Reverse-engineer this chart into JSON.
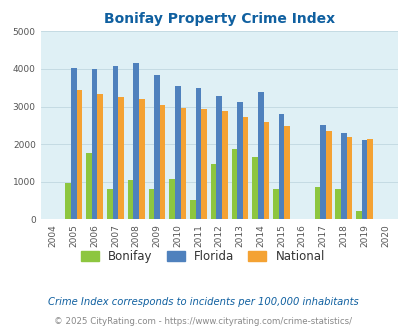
{
  "title": "Bonifay Property Crime Index",
  "years": [
    2004,
    2005,
    2006,
    2007,
    2008,
    2009,
    2010,
    2011,
    2012,
    2013,
    2014,
    2015,
    2016,
    2017,
    2018,
    2019,
    2020
  ],
  "bonifay": [
    0,
    960,
    1760,
    820,
    1040,
    820,
    1080,
    520,
    1470,
    1860,
    1660,
    800,
    0,
    860,
    820,
    220,
    0
  ],
  "florida": [
    0,
    4030,
    3990,
    4090,
    4160,
    3840,
    3560,
    3490,
    3290,
    3120,
    3400,
    2800,
    0,
    2510,
    2310,
    2110,
    0
  ],
  "national": [
    0,
    3440,
    3330,
    3250,
    3200,
    3040,
    2960,
    2940,
    2870,
    2730,
    2590,
    2490,
    0,
    2350,
    2200,
    2140,
    0
  ],
  "color_bonifay": "#8dc63f",
  "color_florida": "#4f81bd",
  "color_national": "#f4a233",
  "bg_color": "#dff0f5",
  "ylim": [
    0,
    5000
  ],
  "yticks": [
    0,
    1000,
    2000,
    3000,
    4000,
    5000
  ],
  "note": "Crime Index corresponds to incidents per 100,000 inhabitants",
  "copyright": "© 2025 CityRating.com - https://www.cityrating.com/crime-statistics/",
  "title_color": "#1060a0",
  "note_color": "#1060a0",
  "copyright_color": "#888888",
  "url_color": "#3070c0"
}
